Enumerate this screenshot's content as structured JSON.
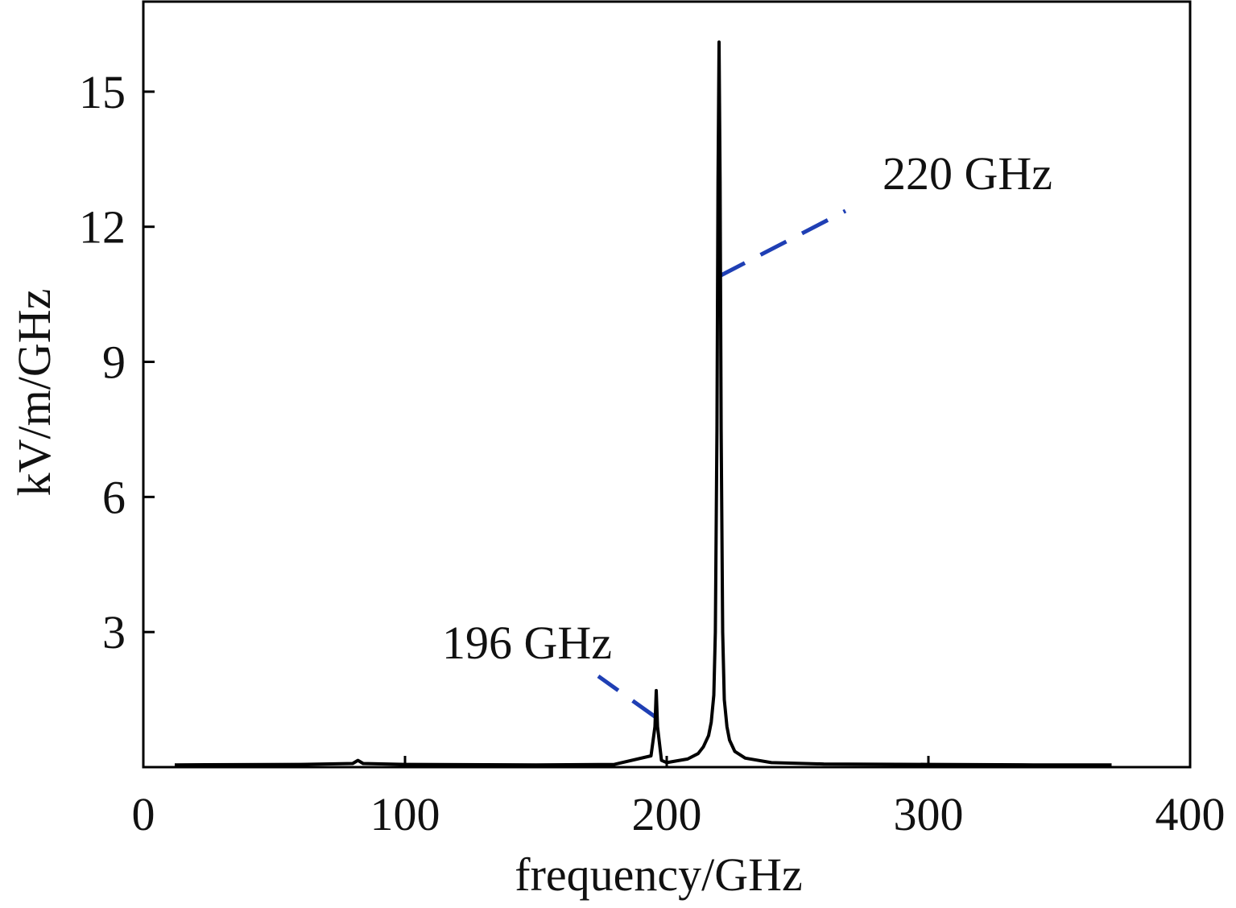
{
  "chart_data": {
    "type": "line",
    "title": "",
    "xlabel": "frequency/GHz",
    "ylabel": "kV/m/GHz",
    "xlim": [
      0,
      400
    ],
    "ylim": [
      0,
      17
    ],
    "xticks": [
      0,
      100,
      200,
      300,
      400
    ],
    "xtick_labels": [
      "0",
      "100",
      "200",
      "300",
      "400"
    ],
    "yticks": [
      3,
      6,
      9,
      12,
      15
    ],
    "ytick_labels": [
      "3",
      "6",
      "9",
      "12",
      "15"
    ],
    "grid": false,
    "legend": "none",
    "series": [
      {
        "color": "#000000",
        "x": [
          12,
          60,
          80,
          82,
          84,
          100,
          150,
          180,
          194,
          195.5,
          196,
          196.5,
          198,
          200,
          208,
          212,
          214,
          216,
          217,
          218,
          218.6,
          219.2,
          219.6,
          220,
          220.4,
          220.8,
          221.4,
          222,
          223,
          224,
          226,
          230,
          240,
          260,
          300,
          340,
          370
        ],
        "y": [
          0.05,
          0.06,
          0.08,
          0.15,
          0.08,
          0.06,
          0.05,
          0.06,
          0.25,
          0.9,
          1.7,
          0.9,
          0.15,
          0.1,
          0.18,
          0.3,
          0.45,
          0.7,
          1.0,
          1.6,
          3.0,
          7.5,
          13.0,
          16.1,
          13.0,
          7.5,
          3.0,
          1.5,
          0.9,
          0.6,
          0.35,
          0.2,
          0.1,
          0.07,
          0.06,
          0.05,
          0.05
        ]
      }
    ],
    "annotations": [
      {
        "text": "196 GHz",
        "x": 196,
        "y": 1.1,
        "color": "#1f3fb4"
      },
      {
        "text": "220 GHz",
        "x": 220,
        "y": 10.9,
        "color": "#1f3fb4"
      }
    ]
  }
}
